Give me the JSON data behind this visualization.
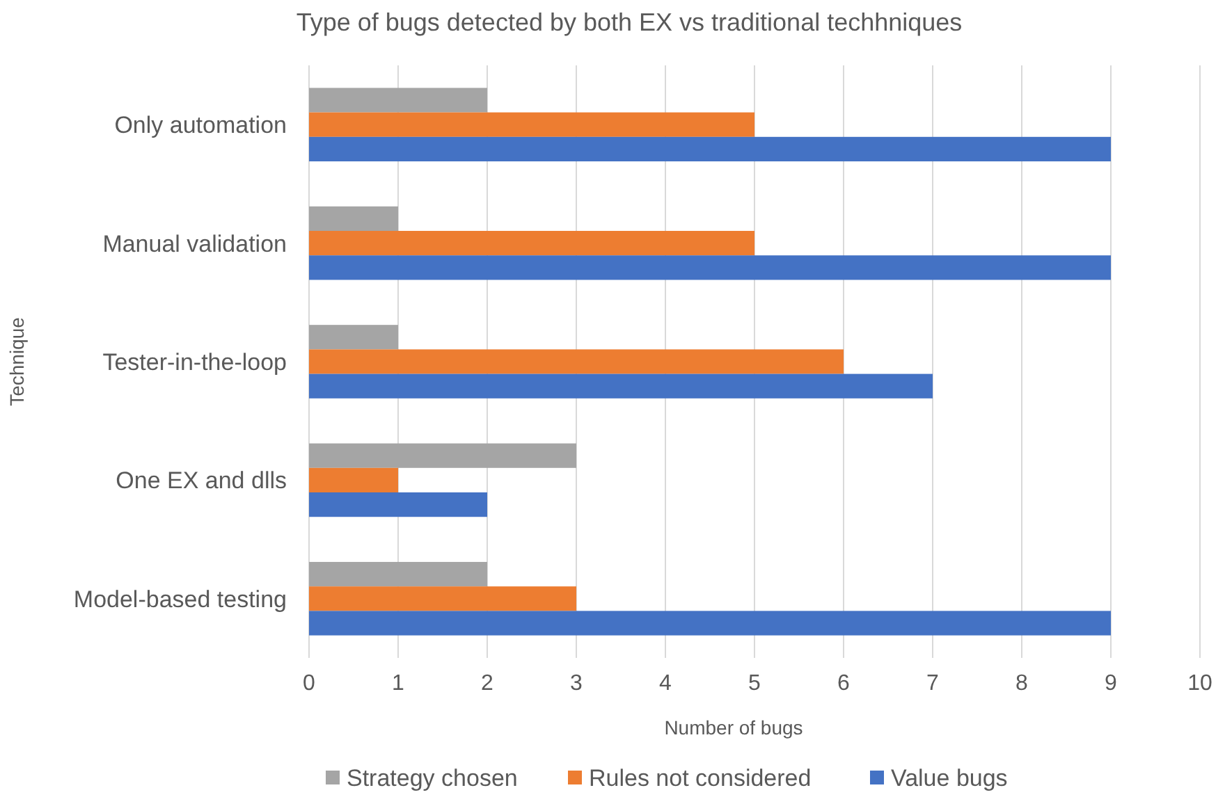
{
  "chart_data": {
    "type": "bar",
    "orientation": "horizontal",
    "title": "Type of bugs detected by both EX vs traditional techhniques",
    "xlabel": "Number of bugs",
    "ylabel": "Technique",
    "categories": [
      "Only automation",
      "Manual validation",
      "Tester-in-the-loop",
      "One EX and dlls",
      "Model-based testing"
    ],
    "series": [
      {
        "name": "Strategy chosen",
        "color": "#a5a5a5",
        "values": [
          2,
          1,
          1,
          3,
          2
        ]
      },
      {
        "name": "Rules not considered",
        "color": "#ed7d31",
        "values": [
          5,
          5,
          6,
          1,
          3
        ]
      },
      {
        "name": "Value bugs",
        "color": "#4472c4",
        "values": [
          9,
          9,
          7,
          2,
          9
        ]
      }
    ],
    "xlim": [
      0,
      10
    ],
    "xticks": [
      0,
      1,
      2,
      3,
      4,
      5,
      6,
      7,
      8,
      9,
      10
    ],
    "grid": "x",
    "legend": "bottom"
  }
}
